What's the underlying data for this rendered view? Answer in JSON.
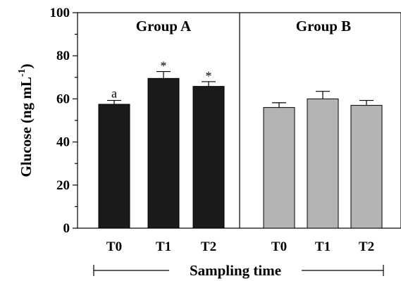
{
  "chart_data": {
    "type": "bar",
    "ylabel": "Glucose (ng mL",
    "ylabel_sup": "-1",
    "ylabel_close": ")",
    "xlabel": "Sampling time",
    "ylim": [
      0,
      100
    ],
    "yticks": [
      0,
      20,
      40,
      60,
      80,
      100
    ],
    "grid": false,
    "groups": [
      {
        "name": "Group A",
        "color": "#1a1a1a",
        "categories": [
          "T0",
          "T1",
          "T2"
        ],
        "values": [
          57.5,
          69.5,
          65.8
        ],
        "errors": [
          1.8,
          3.2,
          2.2
        ],
        "annotations": [
          "a",
          "*",
          "*"
        ]
      },
      {
        "name": "Group B",
        "color": "#b4b4b4",
        "categories": [
          "T0",
          "T1",
          "T2"
        ],
        "values": [
          56.0,
          60.0,
          57.0
        ],
        "errors": [
          2.2,
          3.5,
          2.3
        ],
        "annotations": [
          "",
          "",
          ""
        ]
      }
    ]
  }
}
